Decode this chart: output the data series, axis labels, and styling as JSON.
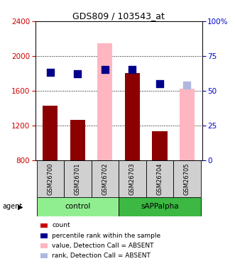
{
  "title": "GDS809 / 103543_at",
  "samples": [
    "GSM26700",
    "GSM26701",
    "GSM26702",
    "GSM26703",
    "GSM26704",
    "GSM26705"
  ],
  "bar_values": [
    1430,
    1260,
    null,
    1800,
    1130,
    null
  ],
  "bar_absent_values": [
    null,
    null,
    2150,
    null,
    null,
    1620
  ],
  "percentile_values": [
    63,
    62,
    65,
    65,
    55,
    null
  ],
  "percentile_absent_values": [
    null,
    null,
    null,
    null,
    null,
    54
  ],
  "bar_bottom": 800,
  "ylim_left": [
    800,
    2400
  ],
  "ylim_right": [
    0,
    100
  ],
  "yticks_left": [
    800,
    1200,
    1600,
    2000,
    2400
  ],
  "yticks_right": [
    0,
    25,
    50,
    75,
    100
  ],
  "yticklabels_right": [
    "0",
    "25",
    "50",
    "75",
    "100%"
  ],
  "groups": [
    {
      "label": "control",
      "samples": [
        0,
        1,
        2
      ],
      "color": "#90ee90"
    },
    {
      "label": "sAPPalpha",
      "samples": [
        3,
        4,
        5
      ],
      "color": "#3cb843"
    }
  ],
  "bar_color_present": "#8b0000",
  "bar_color_absent": "#ffb6c1",
  "dot_color_present": "#00008b",
  "dot_color_absent": "#b0b8e0",
  "title_color": "black",
  "left_axis_color": "#cc0000",
  "right_axis_color": "#0000cc",
  "background_color": "white",
  "plot_bg_color": "white",
  "grid_color": "black",
  "legend_items": [
    {
      "label": "count",
      "color": "#cc0000"
    },
    {
      "label": "percentile rank within the sample",
      "color": "#00008b"
    },
    {
      "label": "value, Detection Call = ABSENT",
      "color": "#ffb6c1"
    },
    {
      "label": "rank, Detection Call = ABSENT",
      "color": "#b0b8e0"
    }
  ]
}
